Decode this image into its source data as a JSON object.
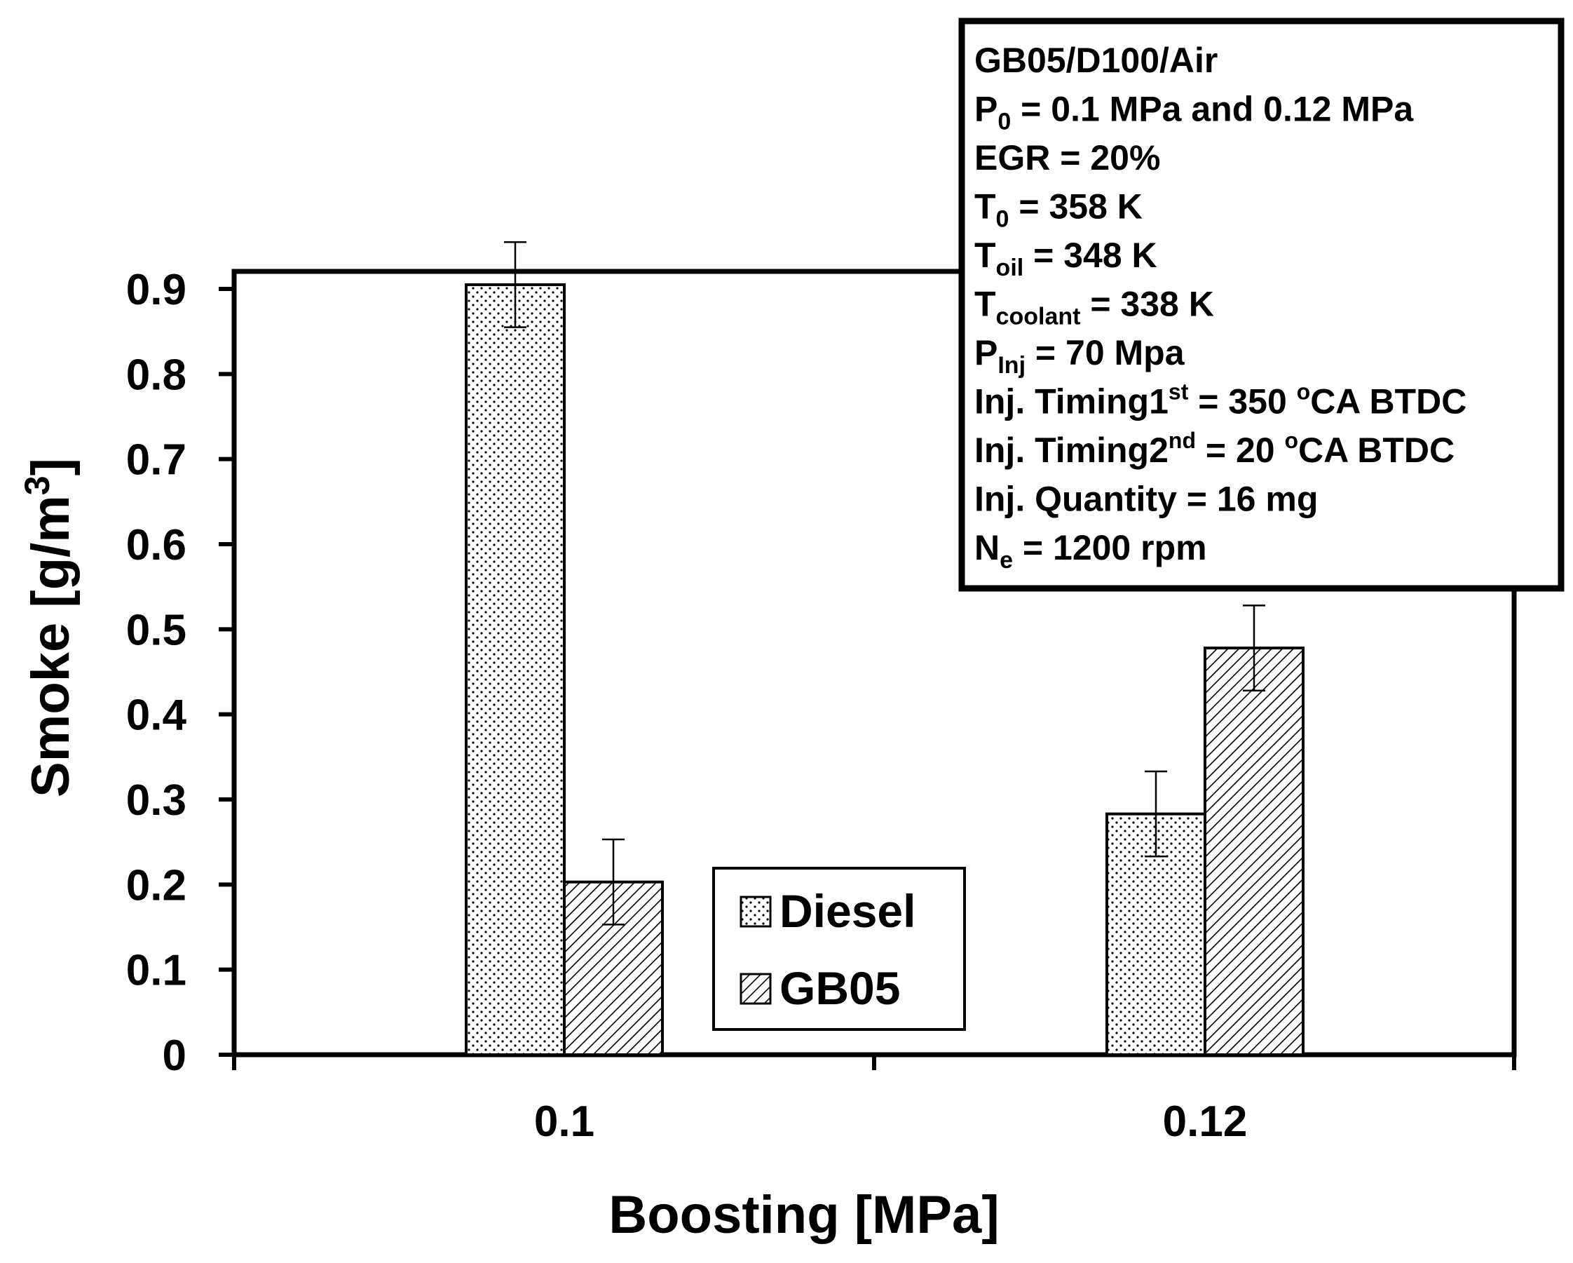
{
  "chart_data": {
    "type": "bar",
    "xlabel": "Boosting [MPa]",
    "ylabel": "Smoke [g/m³]",
    "ylabel_main": "Smoke [g/m",
    "ylabel_sup": "3",
    "ylabel_end": "]",
    "ylim": [
      0,
      0.9
    ],
    "yticks": [
      "0",
      "0.1",
      "0.2",
      "0.3",
      "0.4",
      "0.5",
      "0.6",
      "0.7",
      "0.8",
      "0.9"
    ],
    "categories": [
      "0.1",
      "0.12"
    ],
    "series": [
      {
        "name": "Diesel",
        "pattern": "dots",
        "values": [
          0.905,
          0.283
        ],
        "errors": [
          0.05,
          0.05
        ]
      },
      {
        "name": "GB05",
        "pattern": "hatch",
        "values": [
          0.203,
          0.478
        ],
        "errors": [
          0.05,
          0.05
        ]
      }
    ],
    "legend": {
      "position": "bottom-center",
      "items": [
        "Diesel",
        "GB05"
      ]
    },
    "annotation": {
      "position": "top-right",
      "lines": [
        [
          {
            "t": "GB05/D100/Air"
          }
        ],
        [
          {
            "t": "P"
          },
          {
            "t": "0",
            "s": "sub"
          },
          {
            "t": " = 0.1 MPa and 0.12 MPa"
          }
        ],
        [
          {
            "t": "EGR = 20%"
          }
        ],
        [
          {
            "t": "T"
          },
          {
            "t": "0",
            "s": "sub"
          },
          {
            "t": " = 358 K"
          }
        ],
        [
          {
            "t": "T"
          },
          {
            "t": "oil",
            "s": "sub"
          },
          {
            "t": " = 348 K"
          }
        ],
        [
          {
            "t": "T"
          },
          {
            "t": "coolant",
            "s": "sub"
          },
          {
            "t": " = 338 K"
          }
        ],
        [
          {
            "t": "P"
          },
          {
            "t": "Inj",
            "s": "sub"
          },
          {
            "t": " = 70 Mpa"
          }
        ],
        [
          {
            "t": "Inj. Timing1"
          },
          {
            "t": "st",
            "s": "sup"
          },
          {
            "t": " = 350 "
          },
          {
            "t": "o",
            "s": "sup"
          },
          {
            "t": "CA BTDC"
          }
        ],
        [
          {
            "t": "Inj. Timing2"
          },
          {
            "t": "nd",
            "s": "sup"
          },
          {
            "t": " = 20 "
          },
          {
            "t": "o",
            "s": "sup"
          },
          {
            "t": "CA BTDC"
          }
        ],
        [
          {
            "t": "Inj. Quantity  = 16 mg"
          }
        ],
        [
          {
            "t": "N"
          },
          {
            "t": "e",
            "s": "sub"
          },
          {
            "t": " = 1200 rpm"
          }
        ]
      ]
    },
    "colors": {
      "axis": "#000000",
      "background": "#ffffff",
      "bar_fill": "#ffffff"
    }
  }
}
